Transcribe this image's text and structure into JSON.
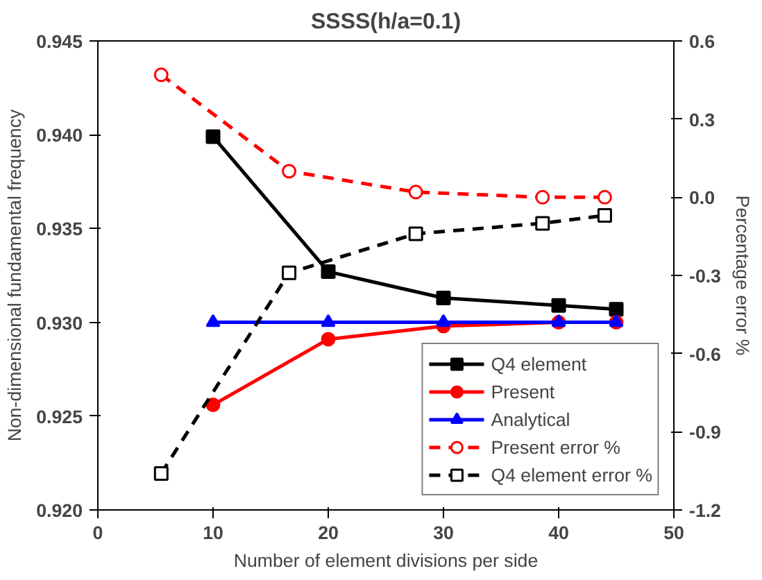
{
  "chart_data": {
    "type": "line",
    "title": "SSSS(h/a=0.1)",
    "xlabel": "Number of element divisions per side",
    "ylabel": "Non-dimensional fundamental frequency",
    "y2label": "Percentage error %",
    "xlim": [
      0,
      50
    ],
    "xticks": [
      0,
      10,
      20,
      30,
      40,
      50
    ],
    "ylim": [
      0.92,
      0.945
    ],
    "yticks": [
      {
        "value": 0.92,
        "label": "0.920"
      },
      {
        "value": 0.925,
        "label": "0.925"
      },
      {
        "value": 0.93,
        "label": "0.930"
      },
      {
        "value": 0.935,
        "label": "0.935"
      },
      {
        "value": 0.94,
        "label": "0.940"
      },
      {
        "value": 0.945,
        "label": "0.945"
      }
    ],
    "y2lim": [
      -1.2,
      0.6
    ],
    "y2ticks": [
      -1.2,
      -0.9,
      -0.6,
      -0.3,
      {
        "value": 0,
        "label": "0.0"
      },
      0.3,
      0.6
    ],
    "legend": "bottom right",
    "grid": false,
    "series": [
      {
        "name": "Q4 element",
        "color": "#000000",
        "marker": "square",
        "line_style": "solid",
        "x": [
          10,
          20,
          30,
          40,
          45
        ],
        "values": [
          0.9399,
          0.9327,
          0.9313,
          0.9309,
          0.9307
        ]
      },
      {
        "name": "Present",
        "color": "#ff0000",
        "marker": "circle",
        "line_style": "solid",
        "x": [
          10,
          20,
          30,
          40,
          45
        ],
        "values": [
          0.9256,
          0.9291,
          0.9298,
          0.93,
          0.93
        ]
      },
      {
        "name": "Analytical",
        "color": "#0000ff",
        "marker": "triangle",
        "line_style": "solid",
        "x": [
          10,
          20,
          30,
          40,
          45
        ],
        "values": [
          0.93,
          0.93,
          0.93,
          0.93,
          0.93
        ]
      },
      {
        "name": "Present error %",
        "color": "#ff0000",
        "marker": "circle",
        "line_style": "dashed",
        "axis": "y2",
        "x": [
          5.5,
          16.6,
          27.6,
          38.6,
          44
        ],
        "values": [
          0.47,
          0.1,
          0.02,
          0.0,
          0.0
        ]
      },
      {
        "name": "Q4 element error %",
        "color": "#000000",
        "marker": "square",
        "line_style": "dashed",
        "axis": "y2",
        "x": [
          5.5,
          16.6,
          27.6,
          38.6,
          44
        ],
        "values": [
          -1.06,
          -0.29,
          -0.14,
          -0.1,
          -0.07
        ]
      }
    ]
  }
}
